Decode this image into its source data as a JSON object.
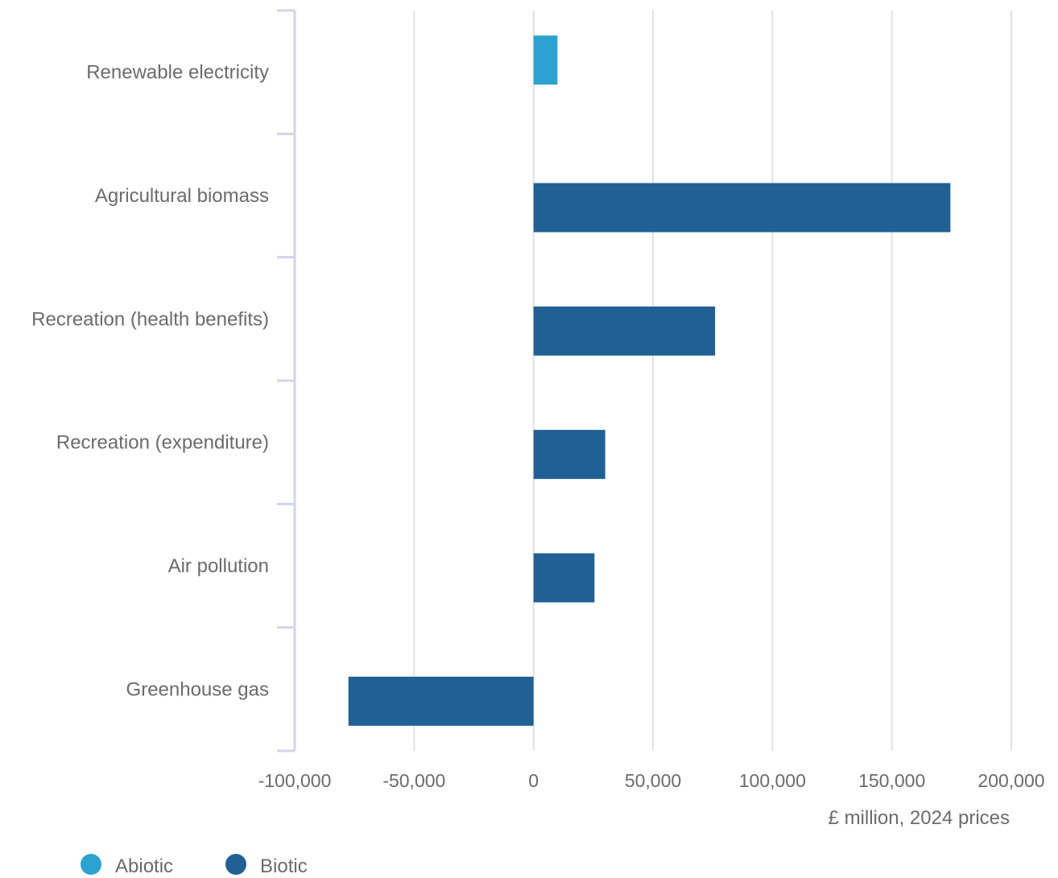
{
  "chart_data": {
    "type": "bar",
    "orientation": "horizontal",
    "categories": [
      "Renewable electricity",
      "Agricultural biomass",
      "Recreation (health benefits)",
      "Recreation (expenditure)",
      "Air pollution",
      "Greenhouse gas"
    ],
    "series": [
      {
        "name": "Abiotic",
        "color": "#2aa3d0",
        "values": [
          10000,
          null,
          null,
          null,
          null,
          null
        ]
      },
      {
        "name": "Biotic",
        "color": "#206095",
        "values": [
          null,
          174500,
          76000,
          30000,
          25500,
          -77500
        ]
      }
    ],
    "xlim": [
      -100000,
      200000
    ],
    "x_ticks": [
      -100000,
      -50000,
      0,
      50000,
      100000,
      150000,
      200000
    ],
    "x_tick_labels": [
      "-100,000",
      "-50,000",
      "0",
      "50,000",
      "100,000",
      "150,000",
      "200,000"
    ],
    "xlabel": "£ million, 2024 prices",
    "ylabel": "",
    "title": "",
    "grid": true,
    "legend_position": "bottom-left"
  }
}
